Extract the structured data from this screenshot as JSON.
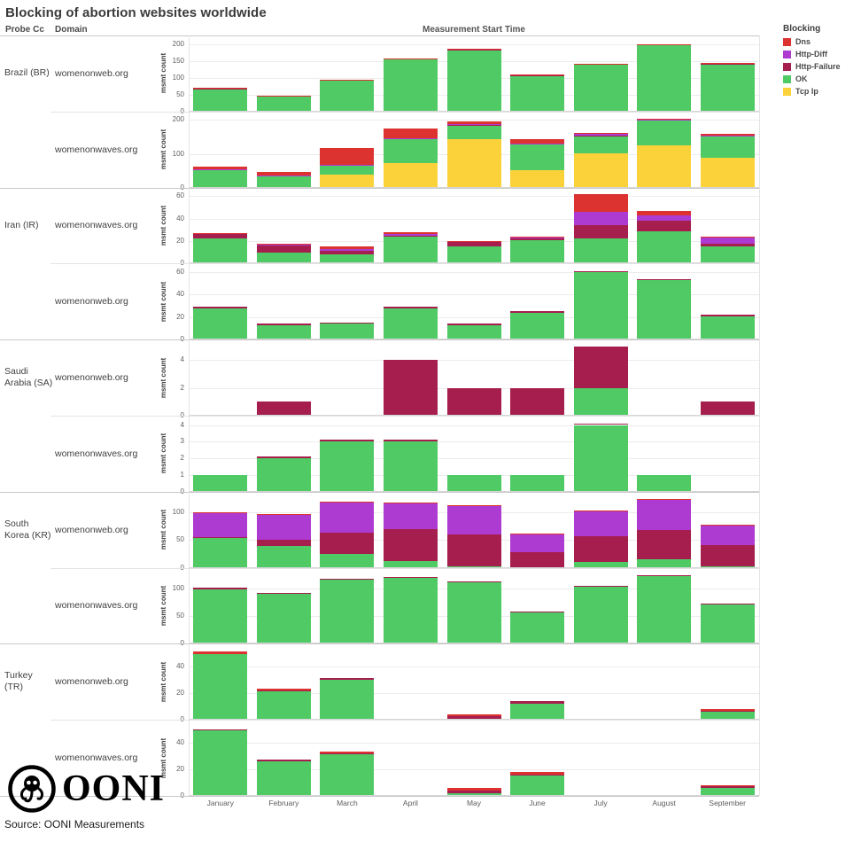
{
  "title": "Blocking of abortion websites worldwide",
  "axis_headers": {
    "probe_cc": "Probe Cc",
    "domain": "Domain"
  },
  "footer": {
    "source": "Source: OONI Measurements",
    "logo_text": "OONI"
  },
  "chart_data": {
    "type": "bar",
    "stacked": true,
    "title": "Blocking of abortion websites worldwide",
    "xlabel": "Measurement Start Time",
    "ylabel": "msmt count",
    "x": [
      "January",
      "February",
      "March",
      "April",
      "May",
      "June",
      "July",
      "August",
      "September"
    ],
    "legend_title": "Blocking",
    "legend": [
      {
        "key": "dns",
        "label": "Dns",
        "color": "#dc3330"
      },
      {
        "key": "http_diff",
        "label": "Http-Diff",
        "color": "#ad3bd1"
      },
      {
        "key": "http_failure",
        "label": "Http-Failure",
        "color": "#a61e4d"
      },
      {
        "key": "ok",
        "label": "OK",
        "color": "#4fca64"
      },
      {
        "key": "tcp_ip",
        "label": "Tcp Ip",
        "color": "#fcd23a"
      }
    ],
    "stack_order": [
      "tcp_ip",
      "ok",
      "http_failure",
      "http_diff",
      "dns"
    ],
    "colors": {
      "dns": "#dc3330",
      "http_diff": "#ad3bd1",
      "http_failure": "#a61e4d",
      "ok": "#4fca64",
      "tcp_ip": "#fcd23a"
    },
    "facets": [
      {
        "probe_cc": "Brazil (BR)",
        "domain": "womenonweb.org",
        "group_start": true,
        "ylim": 210,
        "yticks": [
          0,
          50,
          100,
          150,
          200
        ],
        "series": {
          "tcp_ip": [
            0,
            0,
            0,
            0,
            0,
            0,
            0,
            0,
            0
          ],
          "ok": [
            67,
            44,
            92,
            154,
            182,
            106,
            139,
            197,
            140
          ],
          "http_failure": [
            2,
            2,
            2,
            2,
            2,
            2,
            2,
            2,
            2
          ],
          "http_diff": [
            0,
            0,
            0,
            0,
            0,
            0,
            0,
            0,
            0
          ],
          "dns": [
            1,
            1,
            1,
            1,
            1,
            1,
            1,
            1,
            1
          ]
        }
      },
      {
        "probe_cc": "",
        "domain": "womenonwaves.org",
        "group_start": false,
        "ylim": 210,
        "yticks": [
          0,
          100,
          200
        ],
        "series": {
          "tcp_ip": [
            0,
            1,
            38,
            73,
            143,
            52,
            101,
            125,
            87
          ],
          "ok": [
            52,
            34,
            27,
            70,
            42,
            75,
            52,
            75,
            65
          ],
          "http_failure": [
            1,
            0,
            0,
            0,
            1,
            2,
            2,
            0,
            1
          ],
          "http_diff": [
            2,
            2,
            3,
            3,
            2,
            1,
            3,
            2,
            2
          ],
          "dns": [
            7,
            8,
            50,
            29,
            9,
            13,
            5,
            1,
            4
          ]
        }
      },
      {
        "probe_cc": "Iran (IR)",
        "domain": "womenonwaves.org",
        "group_start": true,
        "ylim": 63,
        "yticks": [
          0,
          20,
          40,
          60
        ],
        "series": {
          "tcp_ip": [
            0,
            0,
            0,
            0,
            0,
            0,
            0,
            0,
            0
          ],
          "ok": [
            22,
            10,
            8,
            24,
            15,
            21,
            22,
            29,
            15
          ],
          "http_failure": [
            4,
            6,
            3,
            1,
            4,
            1,
            12,
            9,
            3
          ],
          "http_diff": [
            0,
            1,
            2,
            1,
            0,
            1,
            12,
            5,
            5
          ],
          "dns": [
            1,
            1,
            2,
            2,
            1,
            1,
            16,
            4,
            1
          ]
        }
      },
      {
        "probe_cc": "",
        "domain": "womenonweb.org",
        "group_start": false,
        "ylim": 63,
        "yticks": [
          0,
          20,
          40,
          60
        ],
        "series": {
          "tcp_ip": [
            0,
            0,
            0,
            0,
            0,
            0,
            0,
            0,
            0
          ],
          "ok": [
            28,
            13,
            14,
            28,
            13,
            24,
            60,
            53,
            21
          ],
          "http_failure": [
            1,
            1,
            1,
            1,
            1,
            1,
            1,
            1,
            1
          ],
          "http_diff": [
            0,
            0,
            0,
            0,
            0,
            0,
            0,
            0,
            0
          ],
          "dns": [
            0,
            0,
            0,
            0,
            0,
            0,
            0,
            0,
            0
          ]
        }
      },
      {
        "probe_cc": "Saudi Arabia (SA)",
        "domain": "womenonweb.org",
        "group_start": true,
        "ylim": 5.1,
        "yticks": [
          0,
          2,
          4
        ],
        "series": {
          "tcp_ip": [
            0,
            0,
            0,
            0,
            0,
            0,
            0,
            0,
            0
          ],
          "ok": [
            0,
            0,
            0,
            0,
            0,
            0,
            2,
            0,
            0
          ],
          "http_failure": [
            0,
            1,
            0,
            4,
            2,
            2,
            3,
            0,
            1
          ],
          "http_diff": [
            0,
            0,
            0,
            0,
            0,
            0,
            0,
            0,
            0
          ],
          "dns": [
            0,
            0,
            0,
            0,
            0,
            0,
            0,
            0,
            0
          ]
        }
      },
      {
        "probe_cc": "",
        "domain": "womenonwaves.org",
        "group_start": false,
        "ylim": 4.25,
        "yticks": [
          0,
          1,
          2,
          3,
          4
        ],
        "series": {
          "tcp_ip": [
            0,
            0,
            0,
            0,
            0,
            0,
            0,
            0,
            0
          ],
          "ok": [
            1,
            2,
            3,
            3,
            1,
            1,
            4,
            1,
            0
          ],
          "http_failure": [
            0,
            0.1,
            0.1,
            0.1,
            0,
            0,
            0.1,
            0,
            0
          ],
          "http_diff": [
            0,
            0,
            0,
            0,
            0,
            0,
            0,
            0,
            0
          ],
          "dns": [
            0,
            0,
            0,
            0,
            0,
            0,
            0,
            0,
            0
          ]
        }
      },
      {
        "probe_cc": "South Korea (KR)",
        "domain": "womenonweb.org",
        "group_start": true,
        "ylim": 128,
        "yticks": [
          0,
          50,
          100
        ],
        "series": {
          "tcp_ip": [
            0,
            0,
            0,
            0,
            0,
            0,
            0,
            0,
            0
          ],
          "ok": [
            54,
            40,
            25,
            12,
            3,
            0,
            10,
            16,
            2
          ],
          "http_failure": [
            1,
            11,
            38,
            57,
            57,
            28,
            47,
            52,
            39
          ],
          "http_diff": [
            44,
            45,
            56,
            48,
            52,
            33,
            46,
            54,
            35
          ],
          "dns": [
            1,
            1,
            1,
            1,
            1,
            1,
            1,
            2,
            1
          ]
        }
      },
      {
        "probe_cc": "",
        "domain": "womenonwaves.org",
        "group_start": false,
        "ylim": 128,
        "yticks": [
          0,
          50,
          100
        ],
        "series": {
          "tcp_ip": [
            0,
            0,
            0,
            0,
            0,
            0,
            0,
            0,
            0
          ],
          "ok": [
            99,
            91,
            116,
            120,
            111,
            57,
            103,
            122,
            71
          ],
          "http_failure": [
            2,
            1,
            2,
            1,
            2,
            2,
            2,
            2,
            2
          ],
          "http_diff": [
            0,
            0,
            0,
            0,
            0,
            0,
            0,
            0,
            0
          ],
          "dns": [
            0,
            0,
            0,
            0,
            0,
            0,
            0,
            0,
            0
          ]
        }
      },
      {
        "probe_cc": "Turkey (TR)",
        "domain": "womenonweb.org",
        "group_start": true,
        "ylim": 53,
        "yticks": [
          0,
          20,
          40
        ],
        "series": {
          "tcp_ip": [
            0,
            0,
            0,
            0,
            0,
            0,
            0,
            0,
            0
          ],
          "ok": [
            49,
            21,
            30,
            0,
            1,
            12,
            0,
            0,
            6
          ],
          "http_failure": [
            0,
            1,
            1,
            0,
            2,
            2,
            0,
            1,
            1
          ],
          "http_diff": [
            0,
            0,
            0,
            0,
            0,
            0,
            0,
            0,
            0
          ],
          "dns": [
            2,
            1,
            0,
            1,
            1,
            0,
            1,
            0,
            1
          ]
        }
      },
      {
        "probe_cc": "",
        "domain": "womenonwaves.org",
        "group_start": false,
        "ylim": 53,
        "yticks": [
          0,
          20,
          40
        ],
        "series": {
          "tcp_ip": [
            0,
            0,
            0,
            0,
            0,
            0,
            0,
            0,
            0
          ],
          "ok": [
            49,
            26,
            31,
            0,
            2,
            15,
            0,
            0,
            6
          ],
          "http_failure": [
            1,
            1,
            1,
            0,
            2,
            1,
            0,
            0,
            1
          ],
          "http_diff": [
            0,
            0,
            0,
            0,
            0,
            0,
            0,
            0,
            0
          ],
          "dns": [
            0,
            0,
            1,
            0,
            2,
            2,
            0,
            0,
            1
          ]
        }
      }
    ]
  }
}
